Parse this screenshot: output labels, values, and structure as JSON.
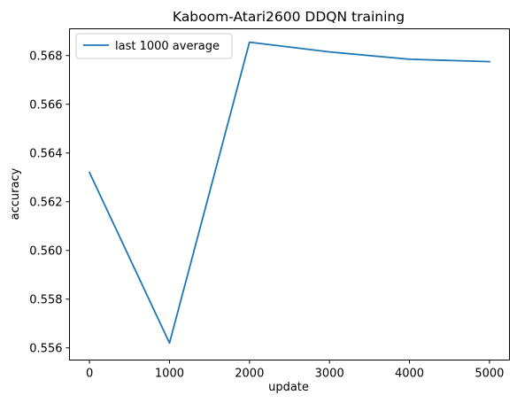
{
  "chart_data": {
    "type": "line",
    "title": "Kaboom-Atari2600 DDQN training",
    "xlabel": "update",
    "ylabel": "accuracy",
    "x": [
      0,
      1000,
      2000,
      3000,
      4000,
      5000
    ],
    "series": [
      {
        "name": "last 1000 average",
        "color": "#1f77b4",
        "values": [
          0.5632,
          0.5562,
          0.56855,
          0.56815,
          0.56785,
          0.56775
        ]
      }
    ],
    "xlim": [
      -250,
      5250
    ],
    "ylim": [
      0.5555,
      0.5691
    ],
    "xticks": [
      0,
      1000,
      2000,
      3000,
      4000,
      5000
    ],
    "xtick_labels": [
      "0",
      "1000",
      "2000",
      "3000",
      "4000",
      "5000"
    ],
    "yticks": [
      0.556,
      0.558,
      0.56,
      0.562,
      0.564,
      0.566,
      0.568
    ],
    "ytick_labels": [
      "0.556",
      "0.558",
      "0.560",
      "0.562",
      "0.564",
      "0.566",
      "0.568"
    ],
    "grid": false,
    "legend_position": "upper-left"
  }
}
